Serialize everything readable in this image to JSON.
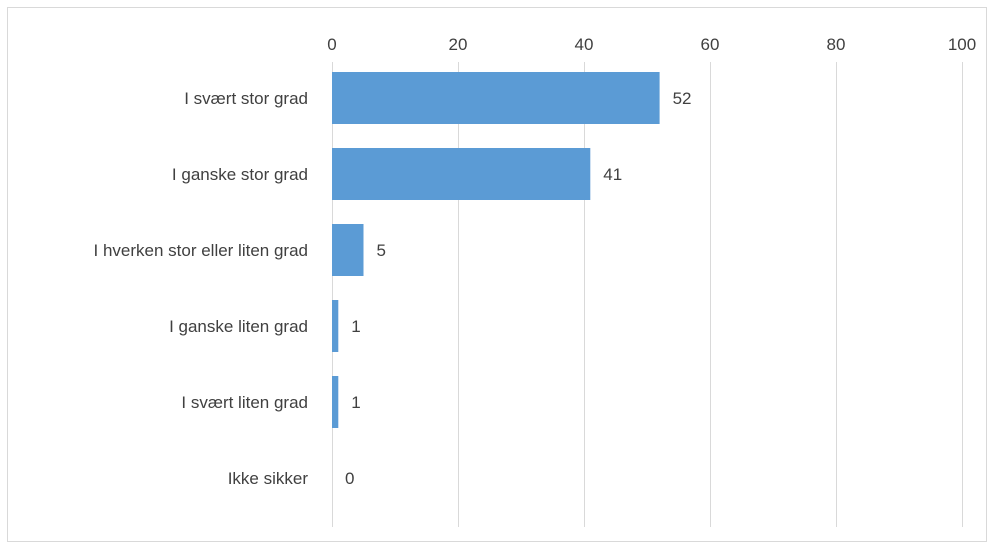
{
  "chart_data": {
    "type": "bar",
    "orientation": "horizontal",
    "categories": [
      "I svært stor grad",
      "I ganske stor grad",
      "I hverken stor eller liten grad",
      "I ganske liten grad",
      "I svært liten grad",
      "Ikke sikker"
    ],
    "values": [
      52,
      41,
      5,
      1,
      1,
      0
    ],
    "data_labels": [
      "52",
      "41",
      "5",
      "1",
      "1",
      "0"
    ],
    "xlim": [
      0,
      100
    ],
    "x_ticks": [
      0,
      20,
      40,
      60,
      80,
      100
    ],
    "x_tick_labels": [
      "0",
      "20",
      "40",
      "60",
      "80",
      "100"
    ],
    "x_axis_position": "top",
    "grid": true,
    "legend": "none",
    "title": "",
    "xlabel": "",
    "ylabel": "",
    "colors": {
      "bar": "#5b9bd5",
      "grid": "#d9d9d9",
      "text": "#404040",
      "border": "#d9d9d9"
    }
  }
}
